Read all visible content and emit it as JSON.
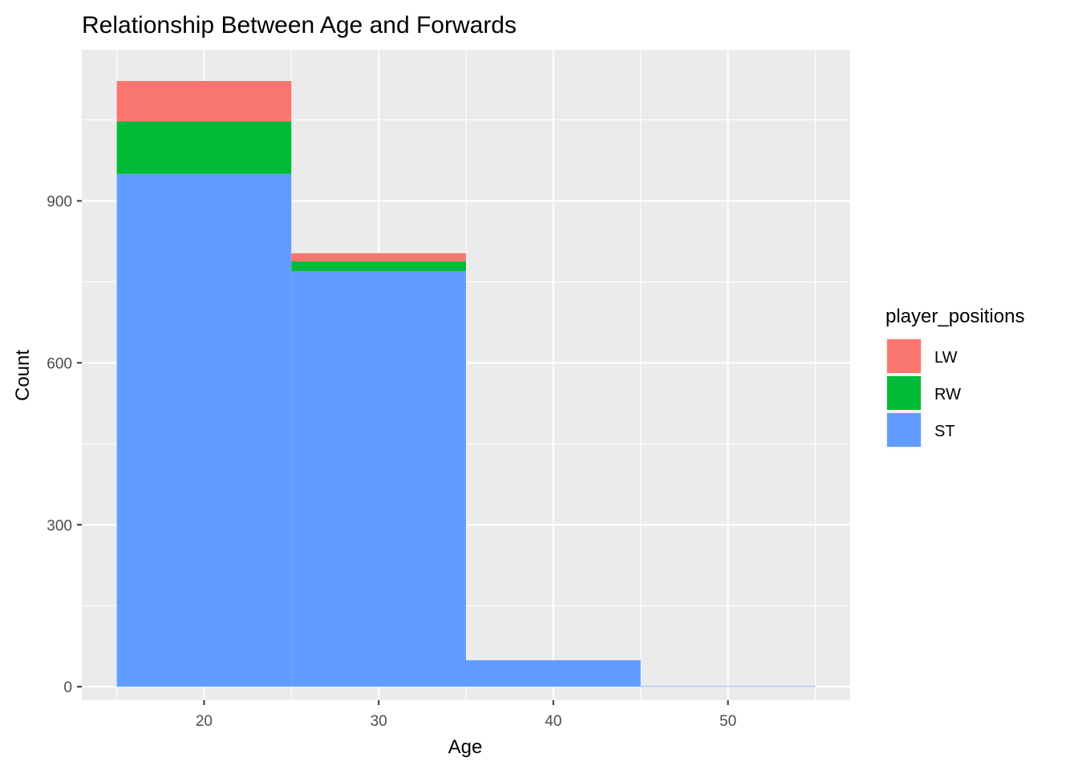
{
  "chart_data": {
    "type": "bar",
    "stacked": true,
    "title": "Relationship Between Age and Forwards",
    "xlabel": "Age",
    "ylabel": "Count",
    "xlim": [
      13,
      57
    ],
    "ylim": [
      -25,
      1180
    ],
    "x_ticks": [
      20,
      30,
      40,
      50
    ],
    "y_ticks": [
      0,
      300,
      600,
      900
    ],
    "x_minor_ticks": [
      15,
      25,
      35,
      45,
      55
    ],
    "y_minor_ticks": [
      150,
      450,
      750,
      1050
    ],
    "bins": [
      [
        15,
        25
      ],
      [
        25,
        35
      ],
      [
        35,
        45
      ],
      [
        45,
        55
      ]
    ],
    "series": [
      {
        "name": "ST",
        "color": "#619CFF",
        "values": [
          950,
          770,
          49,
          1
        ]
      },
      {
        "name": "RW",
        "color": "#00BA38",
        "values": [
          97,
          18,
          0,
          0
        ]
      },
      {
        "name": "LW",
        "color": "#F8766D",
        "values": [
          75,
          15,
          0,
          0
        ]
      }
    ],
    "legend": {
      "title": "player_positions",
      "position": "right",
      "entries": [
        "LW",
        "RW",
        "ST"
      ]
    },
    "panel_background": "#EBEBEB",
    "grid": true,
    "grid_color": "#FFFFFF"
  }
}
